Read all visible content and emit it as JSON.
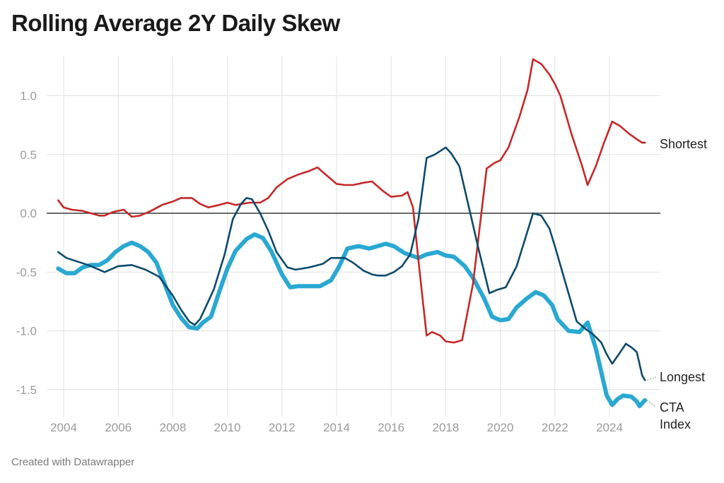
{
  "title": "Rolling Average 2Y Daily Skew",
  "footer": "Created with Datawrapper",
  "chart_data": {
    "type": "line",
    "title": "Rolling Average 2Y Daily Skew",
    "xlabel": "",
    "ylabel": "",
    "xlim": [
      2003.7,
      2025.4
    ],
    "ylim": [
      -1.7,
      1.3
    ],
    "x_ticks": [
      2004,
      2006,
      2008,
      2010,
      2012,
      2014,
      2016,
      2018,
      2020,
      2022,
      2024
    ],
    "x_tick_labels": [
      "2004",
      "2006",
      "2008",
      "2010",
      "2012",
      "2014",
      "2016",
      "2018",
      "2020",
      "2022",
      "2024"
    ],
    "y_ticks": [
      1.0,
      0.5,
      0.0,
      -0.5,
      -1.0,
      -1.5
    ],
    "y_tick_labels": [
      "1.0",
      "0.5",
      "0.0",
      "-0.5",
      "-1.0",
      "-1.5"
    ],
    "grid": true,
    "legend": "direct labels at right end of lines",
    "series": [
      {
        "name": "Shortest",
        "color": "#c62828",
        "points": [
          [
            2003.8,
            0.11
          ],
          [
            2004.0,
            0.05
          ],
          [
            2004.3,
            0.03
          ],
          [
            2004.7,
            0.02
          ],
          [
            2005.0,
            0.0
          ],
          [
            2005.3,
            -0.02
          ],
          [
            2005.5,
            -0.02
          ],
          [
            2005.8,
            0.01
          ],
          [
            2006.2,
            0.03
          ],
          [
            2006.5,
            -0.03
          ],
          [
            2006.8,
            -0.02
          ],
          [
            2007.2,
            0.02
          ],
          [
            2007.6,
            0.07
          ],
          [
            2008.0,
            0.1
          ],
          [
            2008.3,
            0.13
          ],
          [
            2008.7,
            0.13
          ],
          [
            2009.0,
            0.08
          ],
          [
            2009.3,
            0.05
          ],
          [
            2009.7,
            0.07
          ],
          [
            2010.0,
            0.09
          ],
          [
            2010.3,
            0.07
          ],
          [
            2010.8,
            0.09
          ],
          [
            2011.2,
            0.09
          ],
          [
            2011.5,
            0.13
          ],
          [
            2011.8,
            0.22
          ],
          [
            2012.2,
            0.29
          ],
          [
            2012.6,
            0.33
          ],
          [
            2013.0,
            0.36
          ],
          [
            2013.3,
            0.39
          ],
          [
            2013.6,
            0.33
          ],
          [
            2014.0,
            0.25
          ],
          [
            2014.3,
            0.24
          ],
          [
            2014.6,
            0.24
          ],
          [
            2015.0,
            0.26
          ],
          [
            2015.3,
            0.27
          ],
          [
            2015.7,
            0.19
          ],
          [
            2016.0,
            0.14
          ],
          [
            2016.4,
            0.15
          ],
          [
            2016.6,
            0.18
          ],
          [
            2016.8,
            0.05
          ],
          [
            2017.0,
            -0.4
          ],
          [
            2017.3,
            -1.04
          ],
          [
            2017.5,
            -1.01
          ],
          [
            2017.8,
            -1.04
          ],
          [
            2018.0,
            -1.09
          ],
          [
            2018.3,
            -1.1
          ],
          [
            2018.6,
            -1.08
          ],
          [
            2019.0,
            -0.6
          ],
          [
            2019.5,
            0.38
          ],
          [
            2019.8,
            0.43
          ],
          [
            2020.0,
            0.45
          ],
          [
            2020.3,
            0.56
          ],
          [
            2020.7,
            0.82
          ],
          [
            2021.0,
            1.05
          ],
          [
            2021.2,
            1.31
          ],
          [
            2021.5,
            1.27
          ],
          [
            2021.8,
            1.18
          ],
          [
            2022.0,
            1.1
          ],
          [
            2022.2,
            1.0
          ],
          [
            2022.6,
            0.68
          ],
          [
            2023.0,
            0.4
          ],
          [
            2023.2,
            0.24
          ],
          [
            2023.5,
            0.4
          ],
          [
            2023.8,
            0.6
          ],
          [
            2024.1,
            0.78
          ],
          [
            2024.4,
            0.74
          ],
          [
            2024.7,
            0.68
          ],
          [
            2025.0,
            0.63
          ],
          [
            2025.2,
            0.6
          ],
          [
            2025.3,
            0.6
          ]
        ]
      },
      {
        "name": "Longest",
        "color": "#0c4a6e",
        "points": [
          [
            2003.8,
            -0.33
          ],
          [
            2004.1,
            -0.38
          ],
          [
            2004.5,
            -0.41
          ],
          [
            2004.9,
            -0.44
          ],
          [
            2005.3,
            -0.48
          ],
          [
            2005.5,
            -0.5
          ],
          [
            2005.8,
            -0.47
          ],
          [
            2006.0,
            -0.45
          ],
          [
            2006.5,
            -0.44
          ],
          [
            2007.0,
            -0.48
          ],
          [
            2007.5,
            -0.54
          ],
          [
            2008.0,
            -0.7
          ],
          [
            2008.3,
            -0.82
          ],
          [
            2008.6,
            -0.92
          ],
          [
            2008.8,
            -0.95
          ],
          [
            2009.0,
            -0.9
          ],
          [
            2009.5,
            -0.65
          ],
          [
            2009.9,
            -0.35
          ],
          [
            2010.2,
            -0.05
          ],
          [
            2010.5,
            0.08
          ],
          [
            2010.7,
            0.13
          ],
          [
            2010.9,
            0.12
          ],
          [
            2011.2,
            0.0
          ],
          [
            2011.5,
            -0.15
          ],
          [
            2011.8,
            -0.33
          ],
          [
            2012.2,
            -0.46
          ],
          [
            2012.5,
            -0.48
          ],
          [
            2013.0,
            -0.46
          ],
          [
            2013.5,
            -0.43
          ],
          [
            2013.8,
            -0.38
          ],
          [
            2014.3,
            -0.38
          ],
          [
            2014.6,
            -0.42
          ],
          [
            2015.0,
            -0.49
          ],
          [
            2015.3,
            -0.52
          ],
          [
            2015.5,
            -0.53
          ],
          [
            2015.8,
            -0.53
          ],
          [
            2016.1,
            -0.5
          ],
          [
            2016.4,
            -0.45
          ],
          [
            2016.7,
            -0.35
          ],
          [
            2017.0,
            -0.05
          ],
          [
            2017.3,
            0.47
          ],
          [
            2017.6,
            0.5
          ],
          [
            2018.0,
            0.56
          ],
          [
            2018.2,
            0.51
          ],
          [
            2018.5,
            0.4
          ],
          [
            2018.8,
            0.1
          ],
          [
            2019.2,
            -0.3
          ],
          [
            2019.6,
            -0.68
          ],
          [
            2019.9,
            -0.65
          ],
          [
            2020.2,
            -0.63
          ],
          [
            2020.6,
            -0.45
          ],
          [
            2021.0,
            -0.15
          ],
          [
            2021.2,
            0.0
          ],
          [
            2021.5,
            -0.02
          ],
          [
            2021.8,
            -0.13
          ],
          [
            2022.0,
            -0.28
          ],
          [
            2022.4,
            -0.6
          ],
          [
            2022.8,
            -0.92
          ],
          [
            2023.1,
            -0.98
          ],
          [
            2023.4,
            -1.03
          ],
          [
            2023.7,
            -1.1
          ],
          [
            2023.9,
            -1.2
          ],
          [
            2024.1,
            -1.28
          ],
          [
            2024.4,
            -1.18
          ],
          [
            2024.6,
            -1.11
          ],
          [
            2024.8,
            -1.14
          ],
          [
            2025.0,
            -1.18
          ],
          [
            2025.2,
            -1.38
          ],
          [
            2025.3,
            -1.42
          ]
        ]
      },
      {
        "name": "CTA Index",
        "color": "#29a8d2",
        "points": [
          [
            2003.8,
            -0.47
          ],
          [
            2004.1,
            -0.51
          ],
          [
            2004.4,
            -0.51
          ],
          [
            2004.7,
            -0.46
          ],
          [
            2005.0,
            -0.44
          ],
          [
            2005.3,
            -0.44
          ],
          [
            2005.6,
            -0.4
          ],
          [
            2005.9,
            -0.33
          ],
          [
            2006.2,
            -0.28
          ],
          [
            2006.5,
            -0.25
          ],
          [
            2006.8,
            -0.28
          ],
          [
            2007.1,
            -0.33
          ],
          [
            2007.4,
            -0.42
          ],
          [
            2007.7,
            -0.6
          ],
          [
            2008.0,
            -0.78
          ],
          [
            2008.3,
            -0.89
          ],
          [
            2008.6,
            -0.97
          ],
          [
            2008.9,
            -0.98
          ],
          [
            2009.1,
            -0.93
          ],
          [
            2009.4,
            -0.88
          ],
          [
            2009.7,
            -0.67
          ],
          [
            2010.0,
            -0.47
          ],
          [
            2010.3,
            -0.32
          ],
          [
            2010.7,
            -0.22
          ],
          [
            2011.0,
            -0.18
          ],
          [
            2011.3,
            -0.21
          ],
          [
            2011.6,
            -0.32
          ],
          [
            2012.0,
            -0.52
          ],
          [
            2012.3,
            -0.63
          ],
          [
            2012.6,
            -0.62
          ],
          [
            2013.0,
            -0.62
          ],
          [
            2013.4,
            -0.62
          ],
          [
            2013.8,
            -0.57
          ],
          [
            2014.1,
            -0.45
          ],
          [
            2014.4,
            -0.3
          ],
          [
            2014.8,
            -0.28
          ],
          [
            2015.2,
            -0.3
          ],
          [
            2015.5,
            -0.28
          ],
          [
            2015.8,
            -0.26
          ],
          [
            2016.1,
            -0.28
          ],
          [
            2016.5,
            -0.34
          ],
          [
            2017.0,
            -0.38
          ],
          [
            2017.3,
            -0.35
          ],
          [
            2017.7,
            -0.33
          ],
          [
            2018.0,
            -0.36
          ],
          [
            2018.3,
            -0.37
          ],
          [
            2018.7,
            -0.45
          ],
          [
            2019.0,
            -0.55
          ],
          [
            2019.4,
            -0.72
          ],
          [
            2019.7,
            -0.88
          ],
          [
            2020.0,
            -0.91
          ],
          [
            2020.3,
            -0.9
          ],
          [
            2020.6,
            -0.8
          ],
          [
            2021.0,
            -0.72
          ],
          [
            2021.3,
            -0.67
          ],
          [
            2021.6,
            -0.7
          ],
          [
            2021.9,
            -0.78
          ],
          [
            2022.1,
            -0.9
          ],
          [
            2022.5,
            -1.0
          ],
          [
            2022.9,
            -1.01
          ],
          [
            2023.2,
            -0.93
          ],
          [
            2023.5,
            -1.15
          ],
          [
            2023.7,
            -1.35
          ],
          [
            2023.9,
            -1.55
          ],
          [
            2024.1,
            -1.63
          ],
          [
            2024.3,
            -1.58
          ],
          [
            2024.5,
            -1.55
          ],
          [
            2024.8,
            -1.56
          ],
          [
            2025.0,
            -1.6
          ],
          [
            2025.1,
            -1.64
          ],
          [
            2025.3,
            -1.59
          ]
        ]
      }
    ]
  }
}
